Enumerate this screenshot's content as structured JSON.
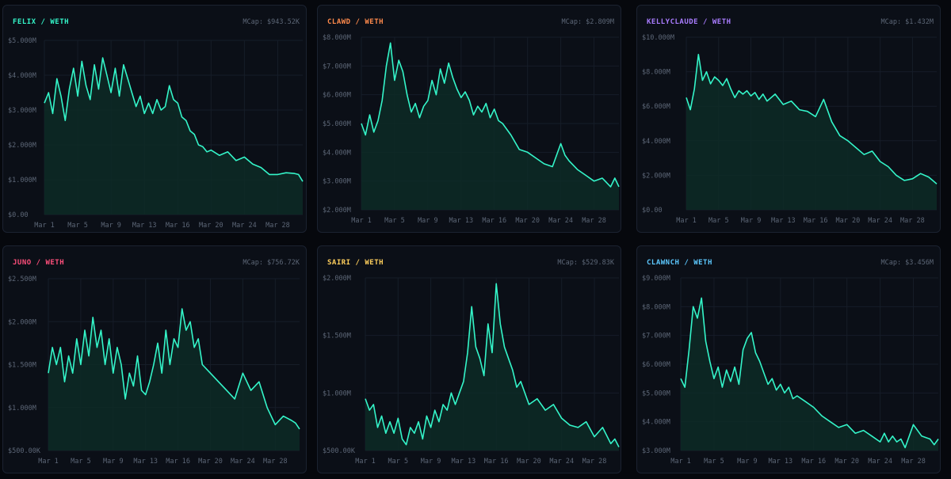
{
  "colors": {
    "line": "#34f5c9",
    "fill": "#0d2a26",
    "grid": "#161d28",
    "tick_text": "#5c6676"
  },
  "charts": [
    {
      "pair": "FELIX",
      "quote": "WETH",
      "pair_color": "#34f5c9",
      "mcap_label": "MCap: $943.52K"
    },
    {
      "pair": "CLAWD",
      "quote": "WETH",
      "pair_color": "#ff8a4c",
      "mcap_label": "MCap: $2.809M"
    },
    {
      "pair": "KELLYCLAUDE",
      "quote": "WETH",
      "pair_color": "#a97cff",
      "mcap_label": "MCap: $1.432M"
    },
    {
      "pair": "JUNO",
      "quote": "WETH",
      "pair_color": "#ff4f7b",
      "mcap_label": "MCap: $756.72K"
    },
    {
      "pair": "SAIRI",
      "quote": "WETH",
      "pair_color": "#ffcf5c",
      "mcap_label": "MCap: $529.83K"
    },
    {
      "pair": "CLAWNCH",
      "quote": "WETH",
      "pair_color": "#5cc8ff",
      "mcap_label": "MCap: $3.456M"
    }
  ],
  "chart_data": [
    {
      "type": "area",
      "title": "FELIX / WETH",
      "x_ticks": [
        "Mar 1",
        "Mar 5",
        "Mar 9",
        "Mar 13",
        "Mar 16",
        "Mar 20",
        "Mar 24",
        "Mar 28"
      ],
      "y_ticks": [
        "$0.00",
        "$1.000M",
        "$2.000M",
        "$3.000M",
        "$4.000M",
        "$5.000M"
      ],
      "ylim": [
        0,
        5000000
      ],
      "x_range": [
        0,
        31
      ],
      "x": [
        0,
        0.5,
        1,
        1.5,
        2,
        2.5,
        3,
        3.5,
        4,
        4.5,
        5,
        5.5,
        6,
        6.5,
        7,
        7.5,
        8,
        8.5,
        9,
        9.5,
        10,
        10.5,
        11,
        11.5,
        12,
        12.5,
        13,
        13.5,
        14,
        14.5,
        15,
        15.5,
        16,
        16.5,
        17,
        17.5,
        18,
        18.5,
        19,
        19.5,
        20,
        21,
        22,
        23,
        24,
        25,
        26,
        27,
        28,
        29,
        30,
        30.5,
        31
      ],
      "values": [
        3200000,
        3500000,
        2900000,
        3900000,
        3400000,
        2700000,
        3600000,
        4200000,
        3400000,
        4400000,
        3700000,
        3300000,
        4300000,
        3600000,
        4500000,
        4000000,
        3500000,
        4200000,
        3400000,
        4300000,
        3900000,
        3500000,
        3100000,
        3400000,
        2900000,
        3200000,
        2900000,
        3300000,
        3000000,
        3100000,
        3700000,
        3300000,
        3200000,
        2800000,
        2700000,
        2400000,
        2300000,
        2000000,
        1950000,
        1800000,
        1850000,
        1700000,
        1800000,
        1550000,
        1650000,
        1450000,
        1350000,
        1150000,
        1150000,
        1200000,
        1180000,
        1150000,
        950000
      ]
    },
    {
      "type": "area",
      "title": "CLAWD / WETH",
      "x_ticks": [
        "Mar 1",
        "Mar 5",
        "Mar 9",
        "Mar 13",
        "Mar 16",
        "Mar 20",
        "Mar 24",
        "Mar 28"
      ],
      "y_ticks": [
        "$2.000M",
        "$3.000M",
        "$4.000M",
        "$5.000M",
        "$6.000M",
        "$7.000M",
        "$8.000M"
      ],
      "ylim": [
        2000000,
        8000000
      ],
      "x_range": [
        0,
        31
      ],
      "x": [
        0,
        0.5,
        1,
        1.5,
        2,
        2.5,
        3,
        3.5,
        4,
        4.5,
        5,
        5.5,
        6,
        6.5,
        7,
        7.5,
        8,
        8.5,
        9,
        9.5,
        10,
        10.5,
        11,
        11.5,
        12,
        12.5,
        13,
        13.5,
        14,
        14.5,
        15,
        15.5,
        16,
        16.5,
        17,
        18,
        19,
        20,
        21,
        22,
        23,
        24,
        24.5,
        25,
        26,
        27,
        28,
        29,
        30,
        30.5,
        31
      ],
      "values": [
        5000000,
        4600000,
        5300000,
        4700000,
        5100000,
        5800000,
        7000000,
        7800000,
        6500000,
        7200000,
        6800000,
        6000000,
        5400000,
        5700000,
        5200000,
        5600000,
        5800000,
        6500000,
        6000000,
        6900000,
        6400000,
        7100000,
        6600000,
        6200000,
        5900000,
        6100000,
        5800000,
        5300000,
        5600000,
        5400000,
        5700000,
        5200000,
        5500000,
        5100000,
        5000000,
        4600000,
        4100000,
        4000000,
        3800000,
        3600000,
        3500000,
        4300000,
        3900000,
        3700000,
        3400000,
        3200000,
        3000000,
        3100000,
        2800000,
        3100000,
        2800000
      ]
    },
    {
      "type": "area",
      "title": "KELLYCLAUDE / WETH",
      "x_ticks": [
        "Mar 1",
        "Mar 5",
        "Mar 9",
        "Mar 13",
        "Mar 16",
        "Mar 20",
        "Mar 24",
        "Mar 28"
      ],
      "y_ticks": [
        "$0.00",
        "$2.000M",
        "$4.000M",
        "$6.000M",
        "$8.000M",
        "$10.000M"
      ],
      "ylim": [
        0,
        10000000
      ],
      "x_range": [
        0,
        31
      ],
      "x": [
        0,
        0.5,
        1,
        1.5,
        2,
        2.5,
        3,
        3.5,
        4,
        4.5,
        5,
        5.5,
        6,
        6.5,
        7,
        7.5,
        8,
        8.5,
        9,
        9.5,
        10,
        11,
        12,
        13,
        14,
        15,
        16,
        17,
        18,
        19,
        20,
        21,
        22,
        23,
        24,
        25,
        26,
        27,
        28,
        29,
        30,
        30.5,
        31
      ],
      "values": [
        6500000,
        5800000,
        7000000,
        9000000,
        7500000,
        8000000,
        7300000,
        7700000,
        7500000,
        7200000,
        7600000,
        7000000,
        6500000,
        6900000,
        6700000,
        6900000,
        6600000,
        6800000,
        6400000,
        6700000,
        6300000,
        6700000,
        6100000,
        6300000,
        5800000,
        5700000,
        5400000,
        6400000,
        5100000,
        4300000,
        4000000,
        3600000,
        3200000,
        3400000,
        2800000,
        2500000,
        2000000,
        1700000,
        1800000,
        2100000,
        1900000,
        1700000,
        1500000
      ]
    },
    {
      "type": "area",
      "title": "JUNO / WETH",
      "x_ticks": [
        "Mar 1",
        "Mar 5",
        "Mar 9",
        "Mar 13",
        "Mar 16",
        "Mar 20",
        "Mar 24",
        "Mar 28"
      ],
      "y_ticks": [
        "$500.00K",
        "$1.000M",
        "$1.500M",
        "$2.000M",
        "$2.500M"
      ],
      "ylim": [
        500000,
        2500000
      ],
      "x_range": [
        0,
        31
      ],
      "x": [
        0,
        0.5,
        1,
        1.5,
        2,
        2.5,
        3,
        3.5,
        4,
        4.5,
        5,
        5.5,
        6,
        6.5,
        7,
        7.5,
        8,
        8.5,
        9,
        9.5,
        10,
        10.5,
        11,
        11.5,
        12,
        12.5,
        13,
        13.5,
        14,
        14.5,
        15,
        15.5,
        16,
        16.5,
        17,
        17.5,
        18,
        18.5,
        19,
        20,
        21,
        22,
        23,
        24,
        25,
        26,
        27,
        28,
        29,
        30,
        30.5,
        31
      ],
      "values": [
        1400000,
        1700000,
        1500000,
        1700000,
        1300000,
        1600000,
        1400000,
        1800000,
        1500000,
        1900000,
        1600000,
        2050000,
        1700000,
        1900000,
        1500000,
        1800000,
        1400000,
        1700000,
        1500000,
        1100000,
        1400000,
        1250000,
        1600000,
        1200000,
        1150000,
        1300000,
        1500000,
        1750000,
        1400000,
        1900000,
        1500000,
        1800000,
        1700000,
        2150000,
        1900000,
        2000000,
        1700000,
        1800000,
        1500000,
        1400000,
        1300000,
        1200000,
        1100000,
        1400000,
        1200000,
        1300000,
        1000000,
        800000,
        900000,
        850000,
        820000,
        750000
      ]
    },
    {
      "type": "area",
      "title": "SAIRI / WETH",
      "x_ticks": [
        "Mar 1",
        "Mar 5",
        "Mar 9",
        "Mar 13",
        "Mar 16",
        "Mar 20",
        "Mar 24",
        "Mar 28"
      ],
      "y_ticks": [
        "$500.00K",
        "$1.000M",
        "$1.500M",
        "$2.000M"
      ],
      "ylim": [
        500000,
        2000000
      ],
      "x_range": [
        0,
        31
      ],
      "x": [
        0,
        0.5,
        1,
        1.5,
        2,
        2.5,
        3,
        3.5,
        4,
        4.5,
        5,
        5.5,
        6,
        6.5,
        7,
        7.5,
        8,
        8.5,
        9,
        9.5,
        10,
        10.5,
        11,
        11.5,
        12,
        12.5,
        13,
        13.5,
        14,
        14.5,
        15,
        15.5,
        16,
        16.5,
        17,
        17.5,
        18,
        18.5,
        19,
        20,
        21,
        22,
        23,
        24,
        25,
        26,
        27,
        28,
        29,
        30,
        30.5,
        31
      ],
      "values": [
        950000,
        850000,
        900000,
        700000,
        800000,
        650000,
        750000,
        650000,
        780000,
        600000,
        550000,
        700000,
        650000,
        750000,
        600000,
        800000,
        700000,
        850000,
        750000,
        900000,
        850000,
        1000000,
        900000,
        1000000,
        1100000,
        1350000,
        1750000,
        1400000,
        1300000,
        1150000,
        1600000,
        1350000,
        1950000,
        1600000,
        1400000,
        1300000,
        1200000,
        1050000,
        1100000,
        900000,
        950000,
        850000,
        900000,
        780000,
        720000,
        700000,
        750000,
        620000,
        700000,
        560000,
        600000,
        530000
      ]
    },
    {
      "type": "area",
      "title": "CLAWNCH / WETH",
      "x_ticks": [
        "Mar 1",
        "Mar 5",
        "Mar 9",
        "Mar 13",
        "Mar 16",
        "Mar 20",
        "Mar 24",
        "Mar 28"
      ],
      "y_ticks": [
        "$3.000M",
        "$4.000M",
        "$5.000M",
        "$6.000M",
        "$7.000M",
        "$8.000M",
        "$9.000M"
      ],
      "ylim": [
        3000000,
        9000000
      ],
      "x_range": [
        0,
        31
      ],
      "x": [
        0,
        0.5,
        1,
        1.5,
        2,
        2.5,
        3,
        3.5,
        4,
        4.5,
        5,
        5.5,
        6,
        6.5,
        7,
        7.5,
        8,
        8.5,
        9,
        9.5,
        10,
        10.5,
        11,
        11.5,
        12,
        12.5,
        13,
        13.5,
        14,
        15,
        16,
        17,
        18,
        19,
        20,
        21,
        22,
        23,
        24,
        24.5,
        25,
        25.5,
        26,
        26.5,
        27,
        28,
        29,
        30,
        30.5,
        31
      ],
      "values": [
        5500000,
        5200000,
        6500000,
        8000000,
        7600000,
        8300000,
        6800000,
        6100000,
        5500000,
        5900000,
        5200000,
        5800000,
        5400000,
        5900000,
        5300000,
        6500000,
        6900000,
        7100000,
        6400000,
        6100000,
        5700000,
        5300000,
        5500000,
        5100000,
        5300000,
        5000000,
        5200000,
        4800000,
        4900000,
        4700000,
        4500000,
        4200000,
        4000000,
        3800000,
        3900000,
        3600000,
        3700000,
        3500000,
        3300000,
        3600000,
        3300000,
        3500000,
        3300000,
        3400000,
        3100000,
        3900000,
        3500000,
        3400000,
        3200000,
        3400000
      ]
    }
  ]
}
